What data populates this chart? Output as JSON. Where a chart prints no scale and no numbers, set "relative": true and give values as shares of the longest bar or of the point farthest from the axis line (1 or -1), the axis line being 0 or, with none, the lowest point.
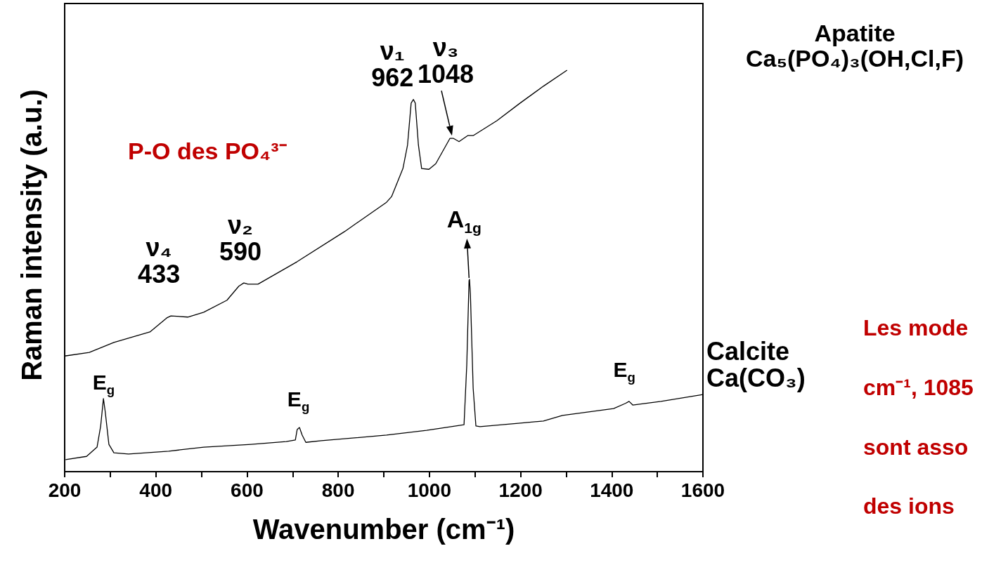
{
  "chart_data": {
    "type": "line",
    "relative": true,
    "xlabel": "Wavenumber (cm⁻¹)",
    "ylabel": "Raman intensity (a.u.)",
    "xlim": [
      200,
      1600
    ],
    "xticks": [
      200,
      {
        "value": 300,
        "label": null
      },
      400,
      {
        "value": 500,
        "label": null
      },
      600,
      {
        "value": 700,
        "label": null
      },
      800,
      {
        "value": 900,
        "label": null
      },
      1000,
      {
        "value": 1100,
        "label": null
      },
      1200,
      {
        "value": 1300,
        "label": null
      },
      1400,
      {
        "value": 1500,
        "label": null
      },
      1600
    ],
    "series": [
      {
        "color": "#000000",
        "x": [
          200,
          254,
          308,
          387,
          424,
          433,
          470,
          505,
          556,
          582,
          593,
          602,
          624,
          710,
          814,
          906,
          917,
          942,
          952,
          960,
          965,
          969,
          976,
          983,
          999,
          1014,
          1045,
          1053,
          1065,
          1084,
          1096,
          1148,
          1199,
          1250,
          1302
        ],
        "values": [
          0.288,
          0.297,
          0.322,
          0.348,
          0.383,
          0.388,
          0.385,
          0.397,
          0.427,
          0.462,
          0.47,
          0.467,
          0.467,
          0.523,
          0.598,
          0.671,
          0.685,
          0.755,
          0.813,
          0.918,
          0.927,
          0.918,
          0.813,
          0.755,
          0.753,
          0.767,
          0.83,
          0.83,
          0.822,
          0.837,
          0.837,
          0.874,
          0.918,
          0.96,
          1.0
        ]
      },
      {
        "color": "#000000",
        "x": [
          202,
          248,
          271,
          279,
          285,
          289,
          297,
          308,
          340,
          428,
          505,
          609,
          686,
          706,
          710,
          715,
          721,
          729,
          763,
          906,
          994,
          1076,
          1082,
          1087,
          1088,
          1090,
          1096,
          1102,
          1111,
          1199,
          1250,
          1292,
          1404,
          1430,
          1438,
          1446,
          1508,
          1600
        ],
        "values": [
          0.03,
          0.038,
          0.061,
          0.114,
          0.182,
          0.149,
          0.068,
          0.047,
          0.044,
          0.051,
          0.061,
          0.068,
          0.075,
          0.079,
          0.105,
          0.11,
          0.091,
          0.073,
          0.077,
          0.091,
          0.103,
          0.117,
          0.266,
          0.476,
          0.479,
          0.441,
          0.208,
          0.114,
          0.112,
          0.121,
          0.126,
          0.14,
          0.157,
          0.17,
          0.175,
          0.166,
          0.175,
          0.192
        ]
      }
    ],
    "annotations": [
      {
        "text": "ν₁\n962",
        "x": 962,
        "y": 0.927
      },
      {
        "text": "ν₃\n1048",
        "x": 1048,
        "y": 0.83
      },
      {
        "text": "ν₂\n590",
        "x": 590,
        "y": 0.47
      },
      {
        "text": "ν₄\n433",
        "x": 433,
        "y": 0.388
      },
      "P-O des PO₄³⁻",
      {
        "text": "E$_{g}$",
        "x": 285,
        "y": 0.182
      },
      {
        "text": "E$_{g}$",
        "x": 714,
        "y": 0.11
      },
      {
        "text": "A$_{1g}$",
        "x": 1087,
        "y": 0.479
      },
      {
        "text": "E$_{g}$",
        "x": 1438,
        "y": 0.175
      },
      "Apatite\nCa₅(PO₄)₃(OH,Cl,F)",
      "Calcite\nCa(CO₃)",
      "Les mode\ncm⁻¹, 1085\nsont asso\ndes ions"
    ]
  }
}
